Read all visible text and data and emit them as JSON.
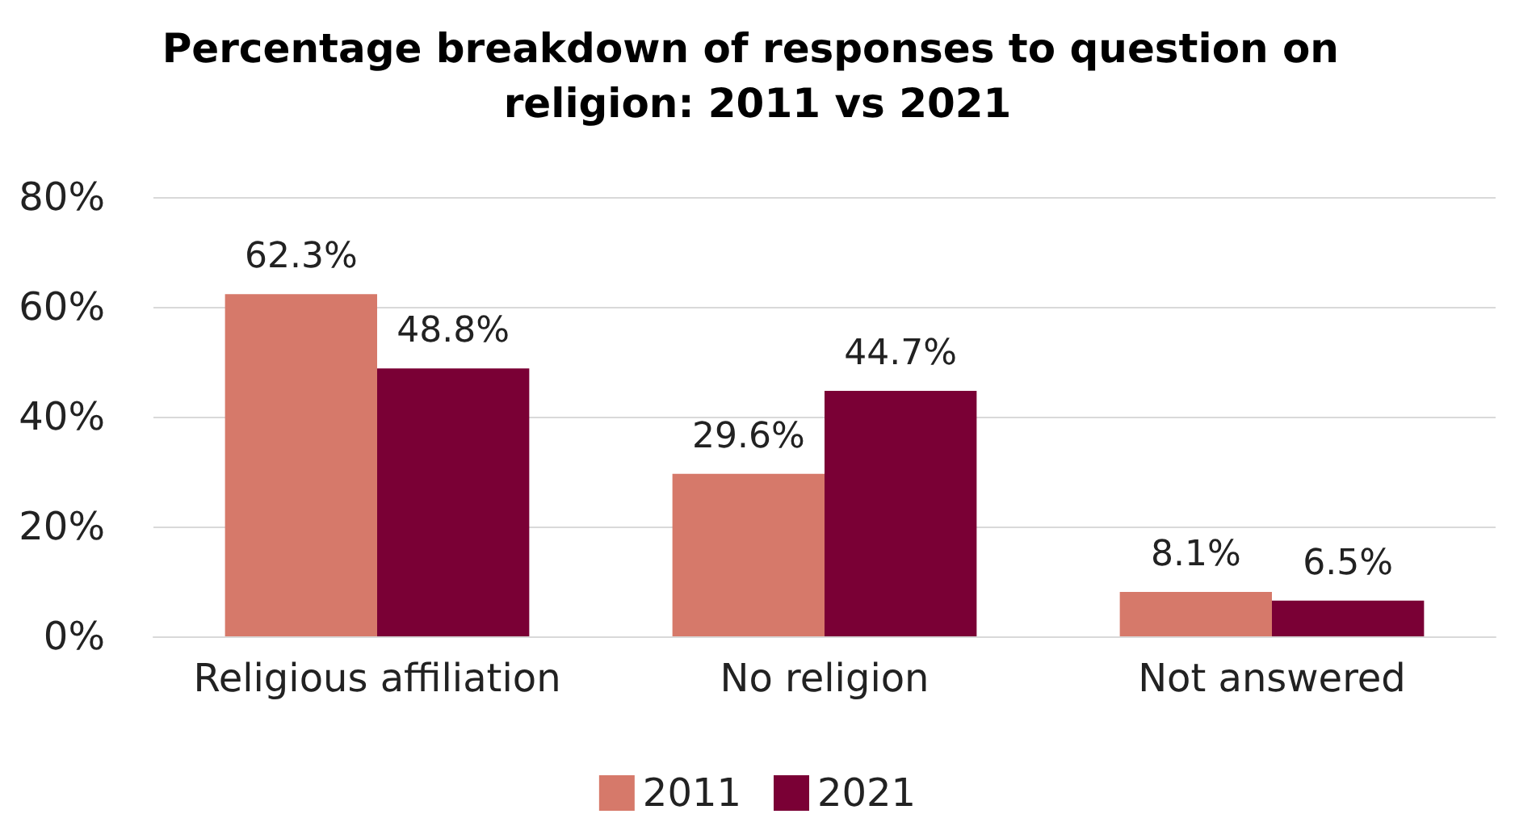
{
  "chart_data": {
    "type": "bar",
    "title": "Percentage breakdown of responses to question on religion: 2011 vs 2021",
    "categories": [
      "Religious affiliation",
      "No religion",
      "Not answered"
    ],
    "series": [
      {
        "name": "2011",
        "color": "#d6796a",
        "values": [
          62.3,
          29.6,
          8.1
        ],
        "value_labels": [
          "62.3%",
          "29.6%",
          "8.1%"
        ]
      },
      {
        "name": "2021",
        "color": "#7a0035",
        "values": [
          48.8,
          44.7,
          6.5
        ],
        "value_labels": [
          "48.8%",
          "44.7%",
          "6.5%"
        ]
      }
    ],
    "ylim": [
      0,
      80
    ],
    "yticks": [
      {
        "value": 0,
        "label": "0%"
      },
      {
        "value": 20,
        "label": "20%"
      },
      {
        "value": 40,
        "label": "40%"
      },
      {
        "value": 60,
        "label": "60%"
      },
      {
        "value": 80,
        "label": "80%"
      }
    ],
    "grid": "y",
    "legend": "bottom"
  }
}
